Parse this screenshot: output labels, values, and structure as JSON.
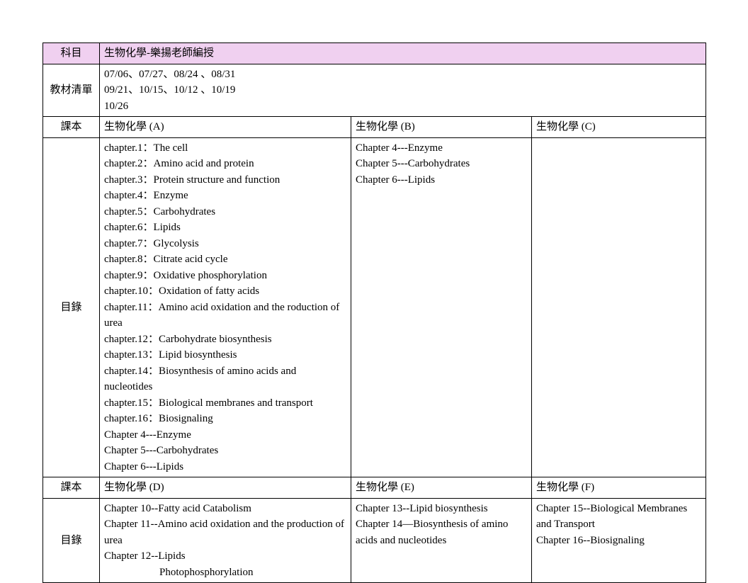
{
  "colors": {
    "header_bg": "#f0d0f0",
    "border": "#000000",
    "text": "#000000",
    "page_bg": "#ffffff"
  },
  "fontsize": 15,
  "row1": {
    "label": "科目",
    "value": "生物化學-樂揚老師編授"
  },
  "row2": {
    "label": "教材清單",
    "line1": "07/06、07/27、08/24 、08/31",
    "line2": "09/21、10/15、10/12 、10/19",
    "line3": "10/26"
  },
  "row3": {
    "label": "課本",
    "c2": "生物化學 (A)",
    "c3": "生物化學 (B)",
    "c4": "生物化學 (C)"
  },
  "row4": {
    "label": "目錄",
    "a": {
      "l1": "chapter.1：The cell",
      "l2": "chapter.2：Amino acid and protein",
      "l3": "chapter.3：Protein structure and function",
      "l4": "chapter.4：Enzyme",
      "l5": "chapter.5：Carbohydrates",
      "l6": "chapter.6：Lipids",
      "l7": "chapter.7：Glycolysis",
      "l8": "chapter.8：Citrate acid cycle",
      "l9": "chapter.9：Oxidative phosphorylation",
      "l10": "chapter.10：Oxidation of fatty acids",
      "l11": "chapter.11：Amino acid oxidation and the roduction of urea",
      "l12": "chapter.12：Carbohydrate biosynthesis",
      "l13": "chapter.13：Lipid biosynthesis",
      "l14": "chapter.14：Biosynthesis of amino acids and nucleotides",
      "l15": "chapter.15：Biological membranes and transport",
      "l16": "chapter.16：Biosignaling",
      "l17": "Chapter 4---Enzyme",
      "l18": "Chapter 5---Carbohydrates",
      "l19": "Chapter 6---Lipids"
    },
    "b": {
      "l1": "Chapter 4---Enzyme",
      "l2": "Chapter 5---Carbohydrates",
      "l3": "Chapter 6---Lipids"
    },
    "c": ""
  },
  "row5": {
    "label": "課本",
    "c2": "生物化學 (D)",
    "c3": "生物化學 (E)",
    "c4": "生物化學 (F)"
  },
  "row6": {
    "label": "目錄",
    "d": {
      "l1": "Chapter 10--Fatty acid Catabolism",
      "l2": "Chapter 11--Amino acid oxidation and the production of urea",
      "l3": "Chapter 12--Lipids",
      "l4": "Photophosphorylation"
    },
    "e": {
      "l1": "Chapter 13--Lipid biosynthesis",
      "l2": "Chapter 14—Biosynthesis of amino acids and nucleotides"
    },
    "f": {
      "l1": "Chapter 15--Biological Membranes and Transport",
      "l2": "Chapter 16--Biosignaling"
    }
  }
}
